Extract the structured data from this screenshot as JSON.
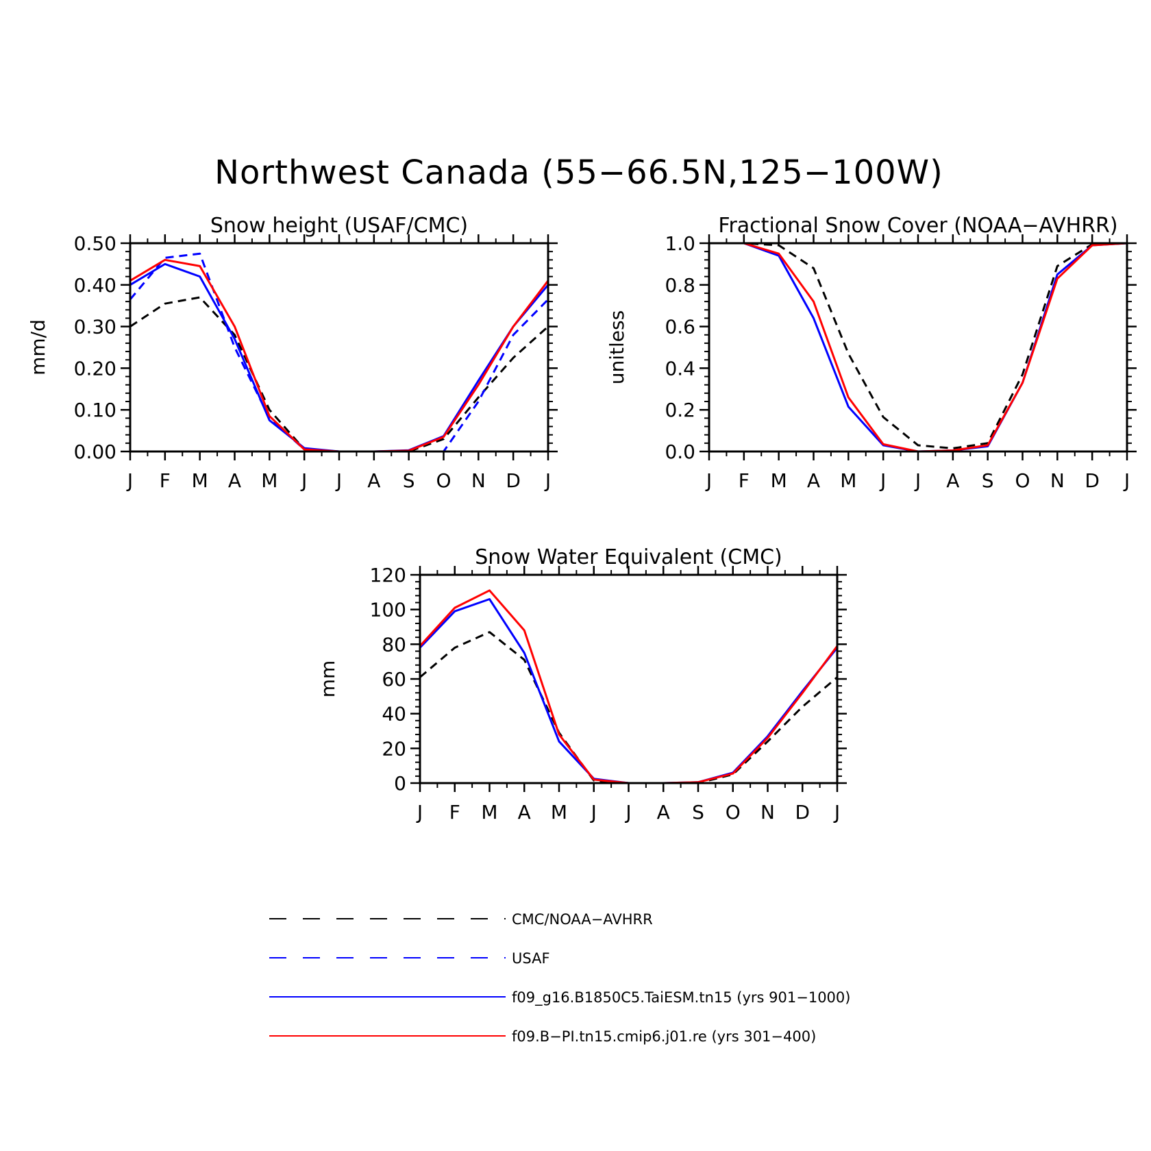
{
  "figure": {
    "title": "Northwest Canada (55−66.5N,125−100W)"
  },
  "months": [
    "J",
    "F",
    "M",
    "A",
    "M",
    "J",
    "J",
    "A",
    "S",
    "O",
    "N",
    "D",
    "J"
  ],
  "colors": {
    "obs": "#000000",
    "usaf": "#0000ff",
    "taiesm": "#0000ff",
    "cmip6": "#ff0000"
  },
  "legend": [
    {
      "key": "obs",
      "label": "CMC/NOAA−AVHRR",
      "style": "dashed",
      "color": "#000000"
    },
    {
      "key": "usaf",
      "label": "USAF",
      "style": "dashed",
      "color": "#0000ff"
    },
    {
      "key": "taiesm",
      "label": "f09_g16.B1850C5.TaiESM.tn15 (yrs 901−1000)",
      "style": "solid",
      "color": "#0000ff"
    },
    {
      "key": "cmip6",
      "label": "f09.B−PI.tn15.cmip6.j01.re (yrs 301−400)",
      "style": "solid",
      "color": "#ff0000"
    }
  ],
  "chart_data": [
    {
      "type": "line",
      "title": "Snow height (USAF/CMC)",
      "ylabel": "mm/d",
      "xlabel": "",
      "categories": [
        "J",
        "F",
        "M",
        "A",
        "M",
        "J",
        "J",
        "A",
        "S",
        "O",
        "N",
        "D",
        "J"
      ],
      "ylim": [
        0,
        0.5
      ],
      "yticks": [
        "0.00",
        "0.10",
        "0.20",
        "0.30",
        "0.40",
        "0.50"
      ],
      "series": [
        {
          "key": "obs",
          "values": [
            0.3,
            0.355,
            0.37,
            0.28,
            0.1,
            0.005,
            0.0,
            0.0,
            0.0,
            0.03,
            0.13,
            0.225,
            0.3
          ]
        },
        {
          "key": "usaf",
          "values": [
            0.365,
            0.465,
            0.475,
            0.25,
            0.08,
            0.005,
            0.0,
            0.0,
            0.0,
            0.0,
            0.12,
            0.28,
            0.365
          ]
        },
        {
          "key": "taiesm",
          "values": [
            0.4,
            0.45,
            0.42,
            0.27,
            0.075,
            0.008,
            0.0,
            0.0,
            0.003,
            0.037,
            0.17,
            0.3,
            0.4
          ]
        },
        {
          "key": "cmip6",
          "values": [
            0.41,
            0.46,
            0.445,
            0.3,
            0.085,
            0.005,
            0.0,
            0.0,
            0.002,
            0.035,
            0.16,
            0.3,
            0.41
          ]
        }
      ]
    },
    {
      "type": "line",
      "title": "Fractional Snow Cover (NOAA−AVHRR)",
      "ylabel": "unitless",
      "xlabel": "",
      "categories": [
        "J",
        "F",
        "M",
        "A",
        "M",
        "J",
        "J",
        "A",
        "S",
        "O",
        "N",
        "D",
        "J"
      ],
      "ylim": [
        0,
        1.0
      ],
      "yticks": [
        "0.0",
        "0.2",
        "0.4",
        "0.6",
        "0.8",
        "1.0"
      ],
      "series": [
        {
          "key": "obs",
          "values": [
            1.0,
            1.0,
            0.99,
            0.88,
            0.47,
            0.165,
            0.03,
            0.015,
            0.04,
            0.37,
            0.89,
            0.995,
            1.0
          ]
        },
        {
          "key": "taiesm",
          "values": [
            1.0,
            1.0,
            0.94,
            0.64,
            0.215,
            0.03,
            0.0,
            0.005,
            0.025,
            0.33,
            0.85,
            0.99,
            1.0
          ]
        },
        {
          "key": "cmip6",
          "values": [
            1.0,
            1.0,
            0.95,
            0.72,
            0.26,
            0.035,
            0.0,
            0.005,
            0.03,
            0.33,
            0.83,
            0.99,
            1.0
          ]
        }
      ]
    },
    {
      "type": "line",
      "title": "Snow Water Equivalent (CMC)",
      "ylabel": "mm",
      "xlabel": "",
      "categories": [
        "J",
        "F",
        "M",
        "A",
        "M",
        "J",
        "J",
        "A",
        "S",
        "O",
        "N",
        "D",
        "J"
      ],
      "ylim": [
        0,
        120
      ],
      "yticks": [
        "0",
        "20",
        "40",
        "60",
        "80",
        "100",
        "120"
      ],
      "series": [
        {
          "key": "obs",
          "values": [
            61,
            78,
            87,
            71,
            29,
            1.5,
            0,
            0,
            0,
            5,
            24,
            44,
            61
          ]
        },
        {
          "key": "taiesm",
          "values": [
            78,
            99,
            106,
            75,
            24,
            2.5,
            0,
            0,
            0.5,
            6,
            27,
            53,
            78
          ]
        },
        {
          "key": "cmip6",
          "values": [
            79,
            101,
            111,
            88,
            28,
            2,
            0,
            0,
            0.5,
            5.5,
            26,
            52,
            79
          ]
        }
      ]
    }
  ]
}
